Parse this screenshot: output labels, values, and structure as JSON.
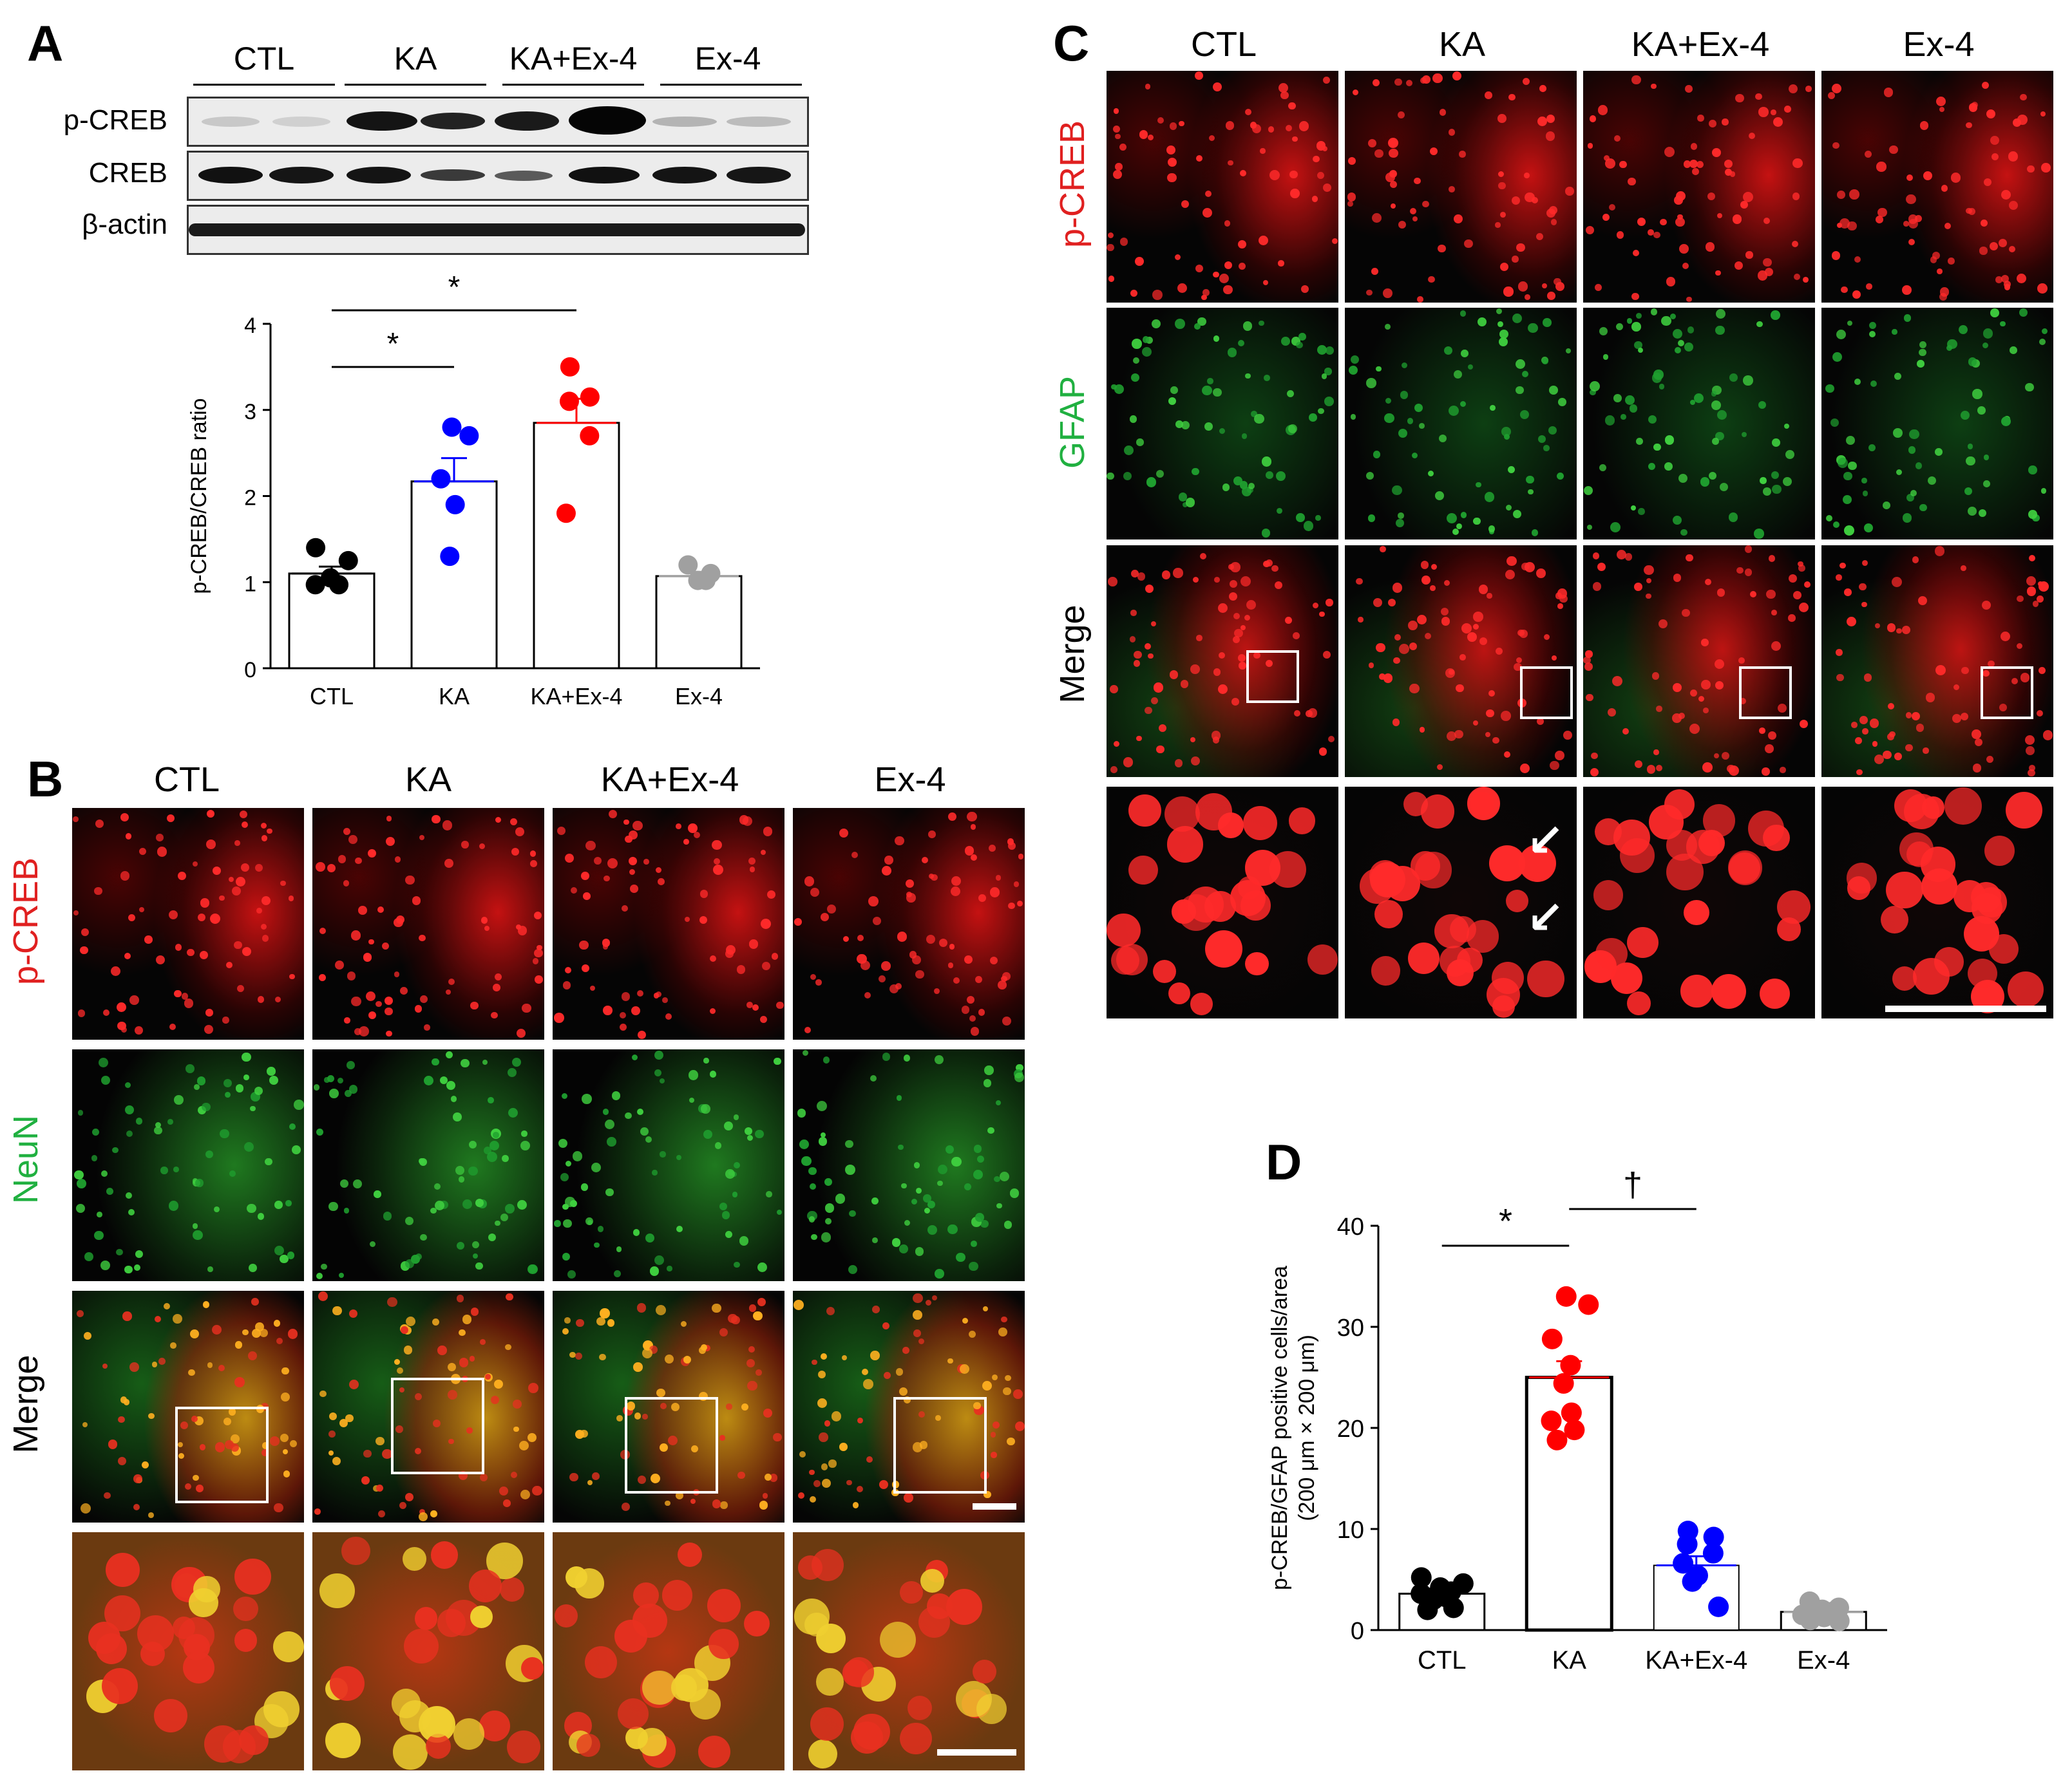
{
  "panels": {
    "a": "A",
    "b": "B",
    "c": "C",
    "d": "D"
  },
  "groups": [
    "CTL",
    "KA",
    "KA+Ex-4",
    "Ex-4"
  ],
  "western_blot": {
    "rows": [
      "p-CREB",
      "CREB",
      "β-actin"
    ]
  },
  "panel_b": {
    "rows": [
      "p-CREB",
      "NeuN",
      "Merge"
    ]
  },
  "panel_c": {
    "rows": [
      "p-CREB",
      "GFAP",
      "Merge"
    ]
  },
  "colors": {
    "ctl": "#000000",
    "ka": "#0000ff",
    "ka_ex4": "#ff0000",
    "ex4": "#a0a0a0",
    "red_stain": "#ff2020",
    "green_stain": "#22c040"
  },
  "chart_data": [
    {
      "type": "bar",
      "ylabel": "p-CREB/CREB ratio",
      "categories": [
        "CTL",
        "KA",
        "KA+Ex-4",
        "Ex-4"
      ],
      "values": [
        1.1,
        2.17,
        2.85,
        1.07
      ],
      "sem": [
        0.08,
        0.27,
        0.28,
        0.05
      ],
      "points": [
        [
          1.4,
          1.25,
          1.05,
          0.97,
          0.97
        ],
        [
          2.8,
          2.7,
          2.2,
          1.9,
          1.3
        ],
        [
          3.5,
          3.15,
          3.1,
          2.7,
          1.8
        ],
        [
          1.2,
          1.1,
          1.02,
          1.02
        ]
      ],
      "point_colors": [
        "#000000",
        "#0000ff",
        "#ff0000",
        "#a0a0a0"
      ],
      "ylim": [
        0,
        4
      ],
      "yticks": [
        0,
        1,
        2,
        3,
        4
      ],
      "significance": [
        {
          "from": "CTL",
          "to": "KA",
          "label": "*"
        },
        {
          "from": "CTL",
          "to": "KA+Ex-4",
          "label": "*"
        }
      ]
    },
    {
      "type": "bar",
      "ylabel_line1": "p-CREB/GFAP positive cells/area",
      "ylabel_line2": "(200 μm × 200 μm)",
      "categories": [
        "CTL",
        "KA",
        "KA+Ex-4",
        "Ex-4"
      ],
      "values": [
        3.6,
        25.0,
        6.4,
        1.8
      ],
      "sem": [
        0.5,
        1.6,
        0.9,
        0.3
      ],
      "points": [
        [
          5.2,
          4.6,
          4.2,
          3.8,
          3.6,
          3.3,
          3.0,
          2.2,
          2.0
        ],
        [
          33.0,
          32.2,
          28.8,
          26.2,
          24.4,
          21.5,
          20.7,
          19.8,
          18.8
        ],
        [
          9.8,
          9.2,
          8.5,
          7.6,
          6.6,
          5.4,
          4.8,
          2.3
        ],
        [
          2.8,
          2.2,
          2.0,
          1.8,
          1.5,
          1.3,
          1.0,
          0.9
        ]
      ],
      "point_colors": [
        "#000000",
        "#ff0000",
        "#0000ff",
        "#a0a0a0"
      ],
      "ylim": [
        0,
        40
      ],
      "yticks": [
        0,
        10,
        20,
        30,
        40
      ],
      "significance": [
        {
          "from": "CTL",
          "to": "KA",
          "label": "*"
        },
        {
          "from": "KA",
          "to": "KA+Ex-4",
          "label": "†"
        }
      ]
    }
  ]
}
